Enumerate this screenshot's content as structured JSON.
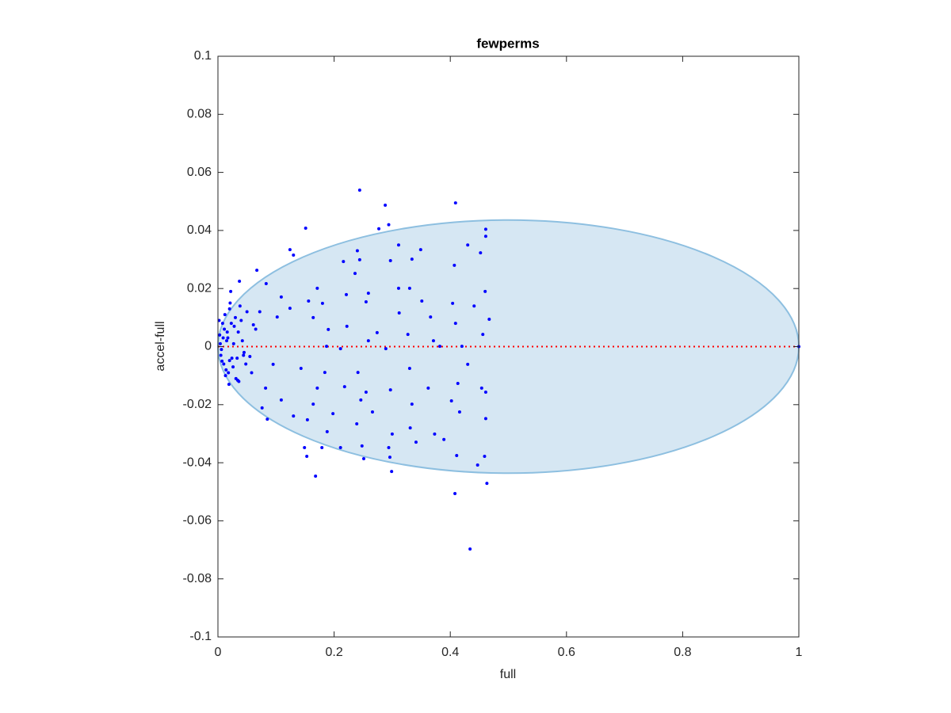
{
  "chart_data": {
    "type": "scatter",
    "title": "fewperms",
    "x_label": "full",
    "y_label": "accel-full",
    "xlim": [
      0,
      1
    ],
    "ylim": [
      -0.1,
      0.1
    ],
    "xticks": [
      0,
      0.2,
      0.4,
      0.6,
      0.8,
      1
    ],
    "yticks": [
      -0.1,
      -0.08,
      -0.06,
      -0.04,
      -0.02,
      0,
      0.02,
      0.04,
      0.06,
      0.08,
      0.1
    ],
    "ellipse": {
      "center": [
        0.5,
        0
      ],
      "radii": [
        0.5,
        0.0436
      ],
      "fill": "#d6e7f3",
      "stroke": "#8dbfe0"
    },
    "hline": {
      "value": 0,
      "color": "#ff0000"
    },
    "series": [
      {
        "color": "#0000ff",
        "x": [
          0.244,
          0.288,
          0.409,
          0.294,
          0.151,
          0.277,
          0.461,
          0.461,
          0.124,
          0.24,
          0.311,
          0.349,
          0.43,
          0.13,
          0.067,
          0.216,
          0.244,
          0.297,
          0.334,
          0.407,
          0.452,
          0.236,
          0.083,
          0.037,
          0.171,
          0.311,
          0.33,
          0.46,
          0.221,
          0.259,
          0.022,
          0.109,
          0.156,
          0.18,
          0.255,
          0.351,
          0.404,
          0.441,
          0.124,
          0.312,
          0.366,
          0.409,
          0.467,
          0.164,
          0.19,
          0.102,
          0.061,
          0.222,
          0.274,
          0.327,
          0.371,
          0.42,
          0.456,
          0.187,
          0.259,
          0.211,
          0.289,
          0.382,
          0.055,
          0.095,
          0.02,
          0.143,
          0.184,
          0.241,
          0.33,
          0.43,
          0.034,
          0.082,
          0.171,
          0.218,
          0.255,
          0.297,
          0.362,
          0.413,
          0.454,
          0.109,
          0.164,
          0.246,
          0.334,
          0.402,
          0.461,
          0.076,
          0.13,
          0.198,
          0.266,
          0.416,
          0.085,
          0.154,
          0.188,
          0.239,
          0.331,
          0.3,
          0.373,
          0.461,
          0.248,
          0.149,
          0.211,
          0.294,
          0.341,
          0.389,
          0.153,
          0.251,
          0.296,
          0.411,
          0.447,
          0.179,
          0.299,
          0.459,
          0.168,
          0.408,
          0.463,
          0.434,
          1.0,
          0.003,
          0.005,
          0.008,
          0.01,
          0.012,
          0.015,
          0.018,
          0.02,
          0.024,
          0.028,
          0.031,
          0.035,
          0.04,
          0.045,
          0.05,
          0.004,
          0.007,
          0.011,
          0.014,
          0.017,
          0.021,
          0.026,
          0.03,
          0.036,
          0.042,
          0.048,
          0.002,
          0.006,
          0.009,
          0.013,
          0.016,
          0.019,
          0.023,
          0.027,
          0.033,
          0.038,
          0.044,
          0.058,
          0.065,
          0.072
        ],
        "y": [
          0.0539,
          0.0487,
          0.0495,
          0.042,
          0.0408,
          0.0406,
          0.0404,
          0.038,
          0.0334,
          0.033,
          0.035,
          0.0334,
          0.035,
          0.0315,
          0.0263,
          0.0293,
          0.0299,
          0.0296,
          0.0301,
          0.028,
          0.0323,
          0.0252,
          0.0217,
          0.0225,
          0.0201,
          0.0201,
          0.0201,
          0.019,
          0.0179,
          0.0184,
          0.019,
          0.0171,
          0.0157,
          0.0149,
          0.0154,
          0.0157,
          0.0149,
          0.014,
          0.0132,
          0.0116,
          0.0102,
          0.008,
          0.0094,
          0.01,
          0.0059,
          0.0102,
          0.0075,
          0.007,
          0.0048,
          0.0042,
          0.002,
          0.0001,
          0.0042,
          0.0001,
          0.002,
          -0.0007,
          -0.0007,
          0.0001,
          -0.0034,
          -0.0061,
          -0.0048,
          -0.0075,
          -0.0089,
          -0.0089,
          -0.0075,
          -0.0061,
          -0.0116,
          -0.0143,
          -0.0143,
          -0.0138,
          -0.0157,
          -0.0149,
          -0.0143,
          -0.0127,
          -0.0143,
          -0.0184,
          -0.0198,
          -0.0184,
          -0.0198,
          -0.0187,
          -0.0157,
          -0.0211,
          -0.0239,
          -0.0231,
          -0.0225,
          -0.0225,
          -0.025,
          -0.0252,
          -0.0293,
          -0.0266,
          -0.028,
          -0.0301,
          -0.0301,
          -0.0248,
          -0.0342,
          -0.0348,
          -0.0348,
          -0.0348,
          -0.0329,
          -0.032,
          -0.0378,
          -0.0386,
          -0.0381,
          -0.0375,
          -0.0408,
          -0.0348,
          -0.043,
          -0.0378,
          -0.0446,
          -0.0506,
          -0.0471,
          -0.0697,
          0,
          0.004,
          -0.003,
          0.008,
          -0.006,
          0.011,
          0.002,
          -0.009,
          0.013,
          -0.004,
          0.007,
          -0.011,
          0.005,
          0.009,
          -0.002,
          0.012,
          0.001,
          -0.005,
          0.006,
          -0.008,
          0.003,
          0.015,
          -0.007,
          0.01,
          -0.012,
          0.002,
          -0.006,
          0.009,
          -0.001,
          0.003,
          -0.01,
          0.005,
          -0.013,
          0.008,
          0.001,
          -0.004,
          0.014,
          -0.003,
          -0.009,
          0.006,
          0.012
        ]
      }
    ]
  }
}
